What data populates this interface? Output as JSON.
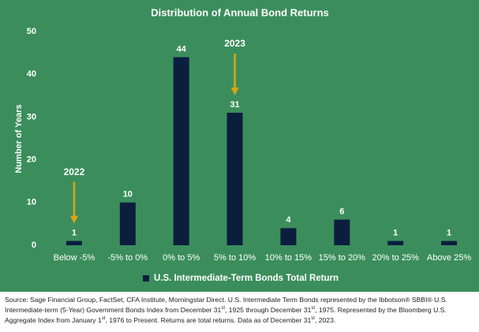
{
  "chart_data": {
    "type": "bar",
    "title": "Distribution of Annual Bond Returns",
    "y_label": "Number of Years",
    "categories": [
      "Below -5%",
      "-5% to 0%",
      "0% to 5%",
      "5% to 10%",
      "10% to 15%",
      "15% to 20%",
      "20% to 25%",
      "Above 25%"
    ],
    "series": [
      {
        "name": "U.S. Intermediate-Term Bonds Total Return",
        "color": "#0c1e3e",
        "values": [
          1,
          10,
          44,
          31,
          4,
          6,
          1,
          1
        ]
      }
    ],
    "ylim": [
      0,
      50
    ],
    "yticks": [
      0,
      10,
      20,
      30,
      40,
      50
    ],
    "grid": false,
    "annotations": [
      {
        "text": "2022",
        "category": "Below -5%",
        "color": "#d9a514"
      },
      {
        "text": "2023",
        "category": "5% to 10%",
        "color": "#d9a514"
      }
    ]
  },
  "source": [
    "Source: Sage Financial Group, FactSet, CFA Institute, Morningstar Direct. U.S. Intermediate Term Bonds represented by the Ibbotson® SBBI® U.S. Intermediate-term (5-Year) Government Bonds Index from December 31",
    "st",
    ", 1925 through December 31",
    "st",
    ", 1975. Represented by the Bloomberg U.S. Aggregate Index from January 1",
    "st",
    ", 1976 to Present. Returns are total returns. Data as of December 31",
    "st",
    ", 2023."
  ]
}
